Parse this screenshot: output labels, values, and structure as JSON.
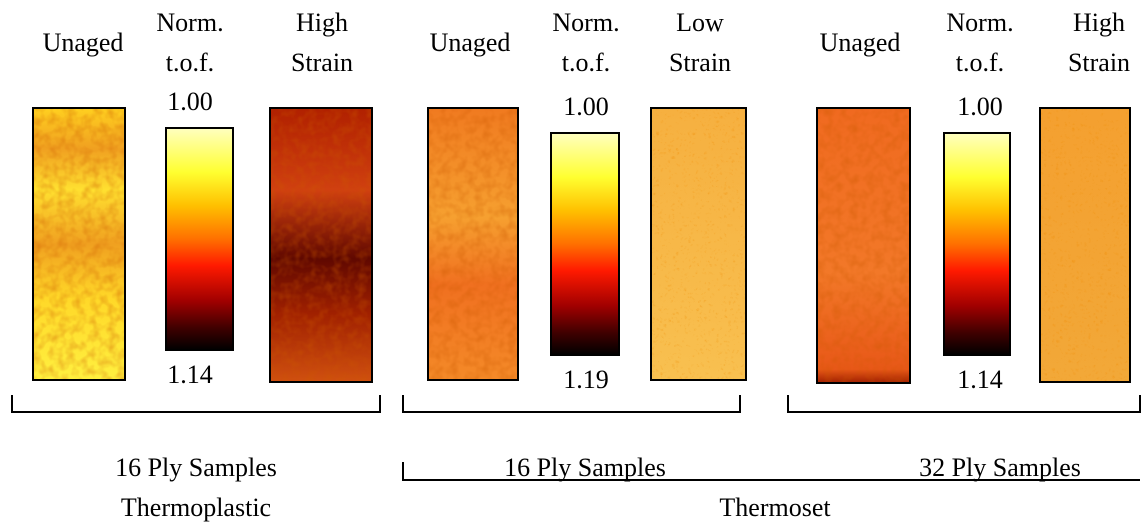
{
  "groups": [
    {
      "unaged_label": "Unaged",
      "scale_label": [
        "Norm.",
        "t.o.f."
      ],
      "scale_top": "1.00",
      "scale_bottom": "1.14",
      "strained_label": [
        "High",
        "Strain"
      ],
      "caption": "16 Ply Samples"
    },
    {
      "unaged_label": "Unaged",
      "scale_label": [
        "Norm.",
        "t.o.f."
      ],
      "scale_top": "1.00",
      "scale_bottom": "1.19",
      "strained_label": [
        "Low",
        "Strain"
      ],
      "caption": "16 Ply Samples"
    },
    {
      "unaged_label": "Unaged",
      "scale_label": [
        "Norm.",
        "t.o.f."
      ],
      "scale_top": "1.00",
      "scale_bottom": "1.14",
      "strained_label": [
        "High",
        "Strain"
      ],
      "caption": "32 Ply Samples"
    }
  ],
  "materials": [
    "Thermoplastic",
    "Thermoset"
  ]
}
